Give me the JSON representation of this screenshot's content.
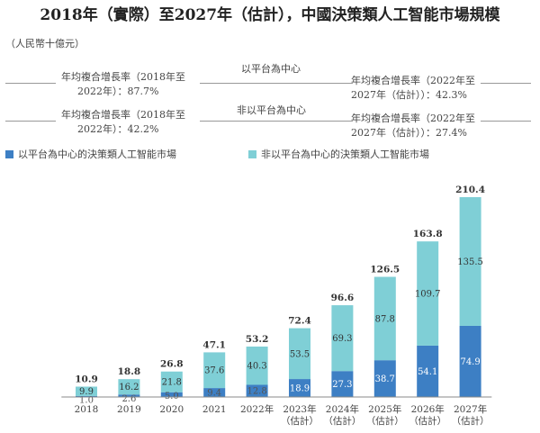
{
  "title": "2018年（實際）至2027年（估計），中國決策類人工智能市場規模",
  "unit_label": "（人民幣十億元）",
  "cagr": {
    "platform_label": "以平台為中心",
    "non_platform_label": "非以平台為中心",
    "platform_hist_l1": "年均複合增長率（2018年至",
    "platform_hist_l2": "2022年）：87.7%",
    "platform_fore_l1": "年均複合增長率（2022年至",
    "platform_fore_l2": "2027年（估計））：42.3%",
    "nonplatform_hist_l1": "年均複合增長率（2018年至",
    "nonplatform_hist_l2": "2022年）：42.2%",
    "nonplatform_fore_l1": "年均複合增長率（2022年至",
    "nonplatform_fore_l2": "2027年（估計））：27.4%"
  },
  "colors": {
    "platform": "#3d7fc4",
    "non_platform": "#7fcfd6",
    "total_label": "#333333"
  },
  "chart_data": {
    "type": "bar",
    "stacked": true,
    "categories": [
      [
        "2018"
      ],
      [
        "2019"
      ],
      [
        "2020"
      ],
      [
        "2021"
      ],
      [
        "2022年"
      ],
      [
        "2023年",
        "（估計）"
      ],
      [
        "2024年",
        "（估計）"
      ],
      [
        "2025年",
        "（估計）"
      ],
      [
        "2026年",
        "（估計）"
      ],
      [
        "2027年",
        "（估計）"
      ]
    ],
    "series": [
      {
        "name": "以平台為中心的決策類人工智能市場",
        "values": [
          1.0,
          2.6,
          5.0,
          9.4,
          12.8,
          18.9,
          27.3,
          38.7,
          54.1,
          74.9
        ]
      },
      {
        "name": "非以平台為中心的決策類人工智能市場",
        "values": [
          9.9,
          16.2,
          21.8,
          37.6,
          40.3,
          53.5,
          69.3,
          87.8,
          109.7,
          135.5
        ]
      }
    ],
    "totals": [
      10.9,
      18.8,
      26.8,
      47.1,
      53.2,
      72.4,
      96.6,
      126.5,
      163.8,
      210.4
    ],
    "ylim": [
      0,
      210.4
    ],
    "grid": false,
    "legend": "top-left"
  }
}
